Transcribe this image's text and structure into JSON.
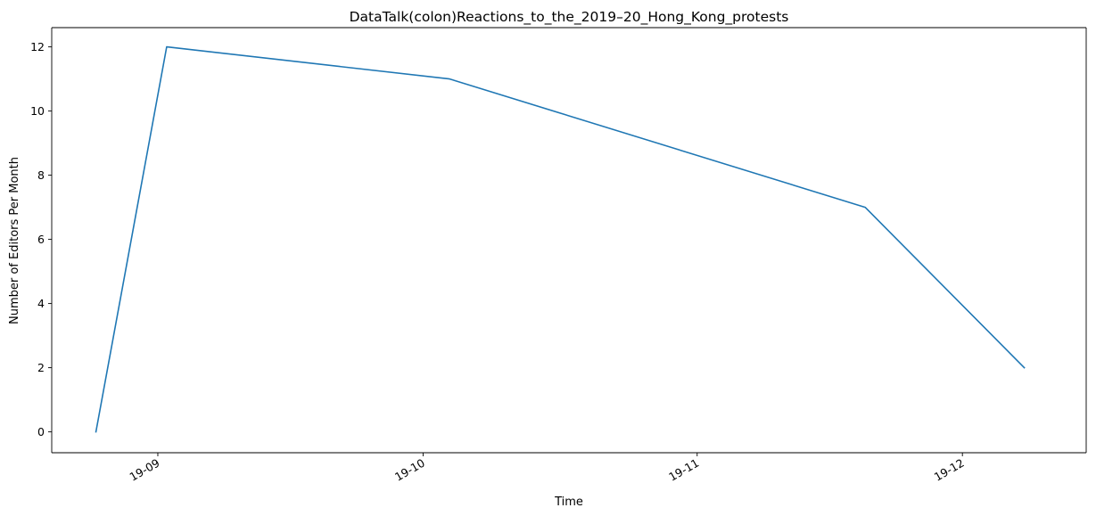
{
  "chart_data": {
    "type": "line",
    "title": "DataTalk(colon)Reactions_to_the_2019–20_Hong_Kong_protests",
    "xlabel": "Time",
    "ylabel": "Number of Editors Per Month",
    "x_axis_type": "date",
    "x_ticks": [
      {
        "date": "2019-09-01",
        "label": "19-09"
      },
      {
        "date": "2019-10-01",
        "label": "19-10"
      },
      {
        "date": "2019-11-01",
        "label": "19-11"
      },
      {
        "date": "2019-12-01",
        "label": "19-12"
      }
    ],
    "y_ticks": [
      0,
      2,
      4,
      6,
      8,
      10,
      12
    ],
    "xlim": [
      "2019-08-20",
      "2019-12-15"
    ],
    "ylim": [
      -0.65,
      12.6
    ],
    "grid": false,
    "line_color": "#1f77b4",
    "series": [
      {
        "x": [
          "2019-08-25",
          "2019-09-02",
          "2019-10-04",
          "2019-11-20",
          "2019-12-08"
        ],
        "y": [
          0,
          12,
          11,
          7,
          2
        ]
      }
    ]
  }
}
